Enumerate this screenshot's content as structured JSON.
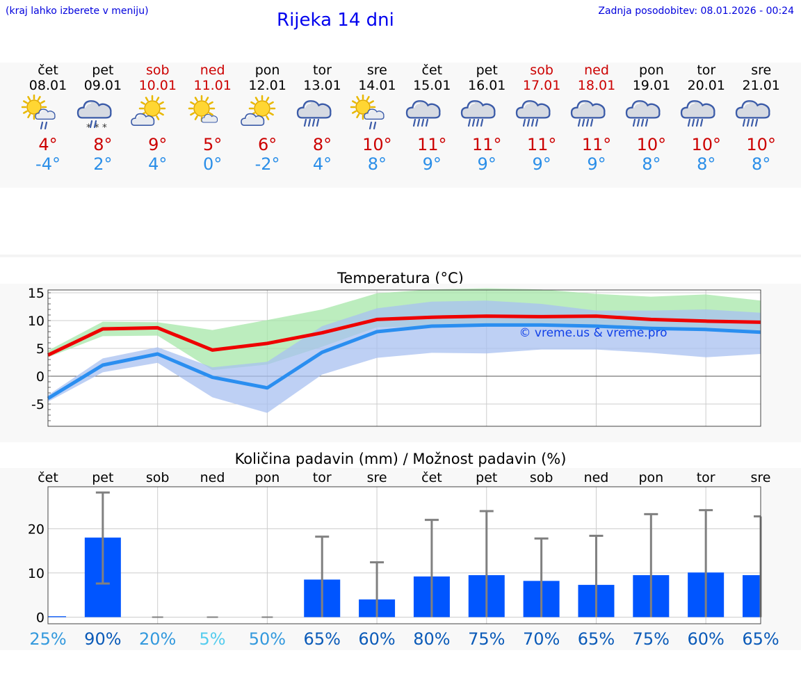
{
  "header": {
    "location_hint": "(kraj lahko izberete v meniju)",
    "title": "Rijeka 14 dni",
    "updated": "Zadnja posodobitev: 08.01.2026 - 00:24"
  },
  "days": [
    {
      "name": "čet",
      "date": "08.01",
      "weekend": false,
      "icon": "sun-cloud-rain-icon",
      "tmax": "4°",
      "tmin": "-4°"
    },
    {
      "name": "pet",
      "date": "09.01",
      "weekend": false,
      "icon": "cloud-snow-icon",
      "tmax": "8°",
      "tmin": "2°"
    },
    {
      "name": "sob",
      "date": "10.01",
      "weekend": true,
      "icon": "sun-cloud-icon",
      "tmax": "9°",
      "tmin": "4°"
    },
    {
      "name": "ned",
      "date": "11.01",
      "weekend": true,
      "icon": "sun-small-cloud-icon",
      "tmax": "5°",
      "tmin": "0°"
    },
    {
      "name": "pon",
      "date": "12.01",
      "weekend": false,
      "icon": "sun-cloud-icon",
      "tmax": "6°",
      "tmin": "-2°"
    },
    {
      "name": "tor",
      "date": "13.01",
      "weekend": false,
      "icon": "cloud-rain-icon",
      "tmax": "8°",
      "tmin": "4°"
    },
    {
      "name": "sre",
      "date": "14.01",
      "weekend": false,
      "icon": "sun-cloud-rain-icon",
      "tmax": "10°",
      "tmin": "8°"
    },
    {
      "name": "čet",
      "date": "15.01",
      "weekend": false,
      "icon": "cloud-rain-icon",
      "tmax": "11°",
      "tmin": "9°"
    },
    {
      "name": "pet",
      "date": "16.01",
      "weekend": false,
      "icon": "cloud-rain-icon",
      "tmax": "11°",
      "tmin": "9°"
    },
    {
      "name": "sob",
      "date": "17.01",
      "weekend": true,
      "icon": "cloud-rain-icon",
      "tmax": "11°",
      "tmin": "9°"
    },
    {
      "name": "ned",
      "date": "18.01",
      "weekend": true,
      "icon": "cloud-rain-icon",
      "tmax": "11°",
      "tmin": "9°"
    },
    {
      "name": "pon",
      "date": "19.01",
      "weekend": false,
      "icon": "cloud-rain-icon",
      "tmax": "10°",
      "tmin": "8°"
    },
    {
      "name": "tor",
      "date": "20.01",
      "weekend": false,
      "icon": "cloud-rain-icon",
      "tmax": "10°",
      "tmin": "8°"
    },
    {
      "name": "sre",
      "date": "21.01",
      "weekend": false,
      "icon": "cloud-rain-icon",
      "tmax": "10°",
      "tmin": "8°"
    }
  ],
  "chart_data": [
    {
      "type": "line",
      "title": "Temperatura (°C)",
      "ylabel": "°C",
      "ylim": [
        -9,
        15.5
      ],
      "yticks": [
        15,
        10,
        5,
        0,
        -5
      ],
      "grid": true,
      "watermark": "© vreme.us & vreme.pro",
      "series": [
        {
          "name": "max",
          "color": "#ee0000",
          "values": [
            3.8,
            8.5,
            8.7,
            4.7,
            5.9,
            7.8,
            10.2,
            10.6,
            10.8,
            10.7,
            10.8,
            10.2,
            9.9,
            9.7
          ]
        },
        {
          "name": "min",
          "color": "#2a8ef0",
          "values": [
            -4.0,
            2.0,
            4.0,
            -0.2,
            -2.1,
            4.3,
            8.0,
            9.0,
            9.2,
            9.2,
            9.0,
            8.6,
            8.4,
            7.9
          ]
        }
      ],
      "bands": [
        {
          "name": "max-range",
          "color": "#a6e7a8",
          "low": [
            3.4,
            7.2,
            7.3,
            1.1,
            2.1,
            5.3,
            8.8,
            9.0,
            9.2,
            9.2,
            9.0,
            8.5,
            8.1,
            8.0
          ],
          "high": [
            4.6,
            9.8,
            9.7,
            8.3,
            10.1,
            12.0,
            14.9,
            15.6,
            15.8,
            15.6,
            14.8,
            14.3,
            14.7,
            13.6
          ]
        },
        {
          "name": "min-range",
          "color": "#a8c0f0",
          "low": [
            -4.6,
            0.7,
            2.4,
            -3.8,
            -6.6,
            0.3,
            3.3,
            4.2,
            4.1,
            4.8,
            4.8,
            4.2,
            3.4,
            4.0
          ],
          "high": [
            -3.4,
            3.2,
            5.2,
            1.6,
            2.6,
            9.0,
            12.2,
            13.4,
            13.6,
            13.0,
            11.8,
            11.8,
            12.0,
            11.4
          ]
        }
      ]
    },
    {
      "type": "bar",
      "title": "Količina padavin (mm) / Možnost padavin (%)",
      "categories": [
        "čet",
        "pet",
        "sob",
        "ned",
        "pon",
        "tor",
        "sre",
        "čet",
        "pet",
        "sob",
        "ned",
        "pon",
        "tor",
        "sre"
      ],
      "values": [
        0.2,
        18.0,
        0,
        0,
        0,
        8.5,
        4.0,
        9.2,
        9.5,
        8.2,
        7.3,
        9.5,
        10.1,
        9.5
      ],
      "err_low": [
        0,
        7.6,
        0,
        0,
        0,
        0,
        0,
        0,
        0,
        0,
        0,
        0,
        0,
        0
      ],
      "err_high": [
        0.2,
        28.2,
        0,
        0,
        0,
        18.2,
        12.4,
        22.0,
        24.0,
        17.8,
        18.4,
        23.3,
        24.2,
        22.8
      ],
      "probability": [
        "25%",
        "90%",
        "20%",
        "5%",
        "50%",
        "65%",
        "60%",
        "80%",
        "75%",
        "70%",
        "65%",
        "75%",
        "60%",
        "65%"
      ],
      "probability_colors": [
        "#3399dd",
        "#0a5ab8",
        "#3399dd",
        "#55ccee",
        "#3399dd",
        "#0a5ab8",
        "#0a5ab8",
        "#0a5ab8",
        "#0a5ab8",
        "#0a5ab8",
        "#0a5ab8",
        "#0a5ab8",
        "#0a5ab8",
        "#0a5ab8"
      ],
      "ylim": [
        -1.5,
        29.5
      ],
      "yticks": [
        20,
        10,
        0
      ],
      "bar_color": "#0055ff",
      "error_color": "#808080"
    }
  ]
}
